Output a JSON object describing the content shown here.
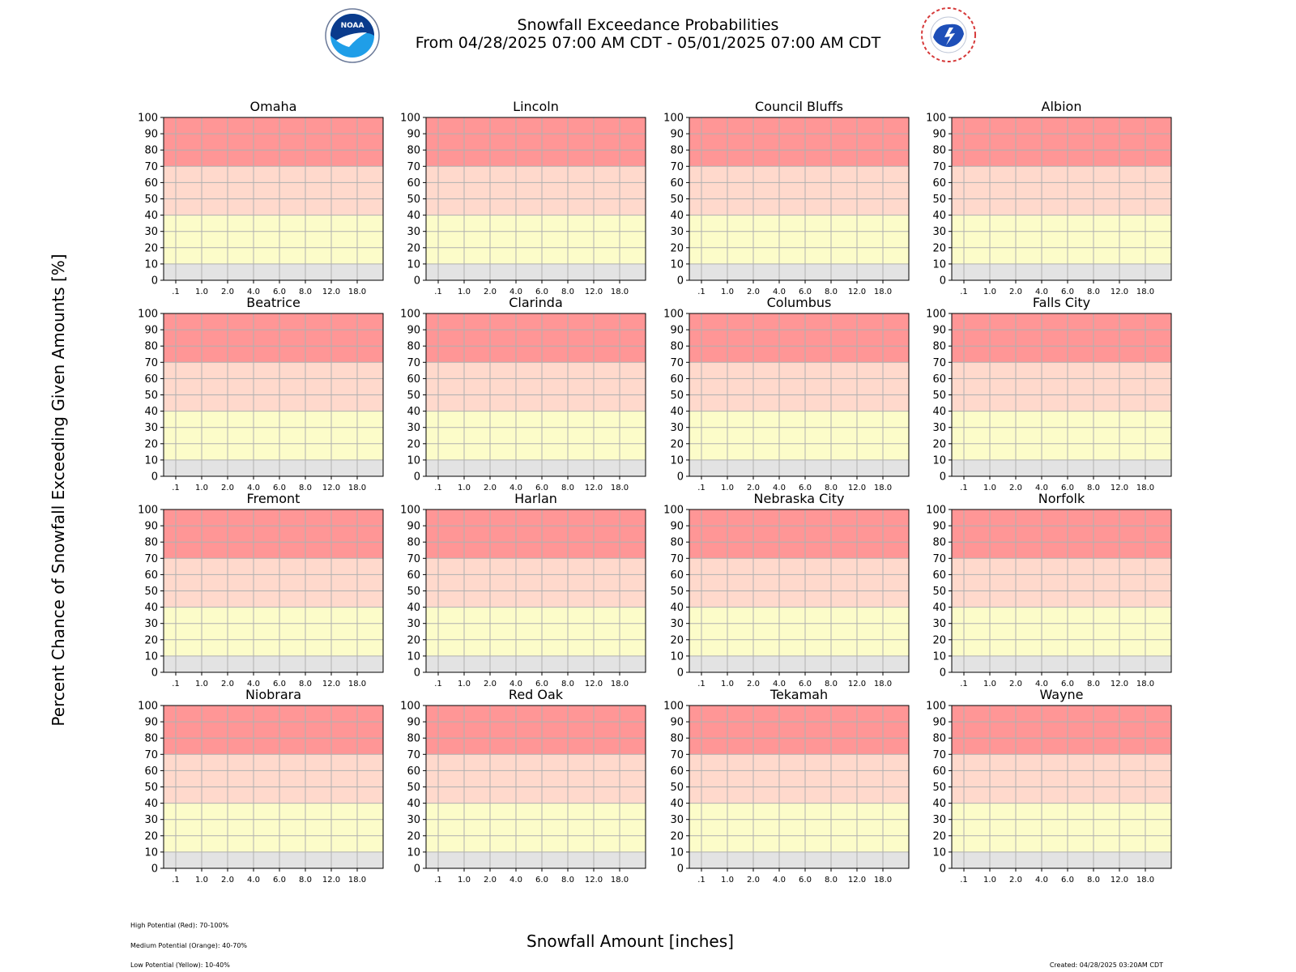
{
  "header": {
    "title_line1": "Snowfall Exceedance Probabilities",
    "title_line2": "From 04/28/2025 07:00 AM CDT - 05/01/2025 07:00 AM CDT"
  },
  "logos": {
    "left": "noaa-logo",
    "right": "nws-logo"
  },
  "colors": {
    "high": "#ff9696",
    "medium": "#ffd9cc",
    "low": "#fcfcc9",
    "minimal": "#e3e3e3",
    "grid": "#b0b0b0"
  },
  "footer": {
    "legend_high": "High Potential (Red): 70-100%",
    "legend_medium": "Medium Potential (Orange): 40-70%",
    "legend_low": "Low Potential (Yellow): 10-40%",
    "created": "Created: 04/28/2025 03:20AM CDT"
  },
  "chart_data": {
    "type": "bar",
    "xlabel": "Snowfall Amount [inches]",
    "ylabel": "Percent Chance of Snowfall Exceeding Given Amounts [%]",
    "categories": [
      ".1",
      "1.0",
      "2.0",
      "4.0",
      "6.0",
      "8.0",
      "12.0",
      "18.0"
    ],
    "ylim": [
      0,
      100
    ],
    "yticks": [
      0,
      10,
      20,
      30,
      40,
      50,
      60,
      70,
      80,
      90,
      100
    ],
    "grid": true,
    "bands": [
      {
        "level": "minimal",
        "from": 0,
        "to": 10
      },
      {
        "level": "low",
        "from": 10,
        "to": 40
      },
      {
        "level": "medium",
        "from": 40,
        "to": 70
      },
      {
        "level": "high",
        "from": 70,
        "to": 100
      }
    ],
    "panels": [
      {
        "title": "Omaha",
        "values": []
      },
      {
        "title": "Lincoln",
        "values": []
      },
      {
        "title": "Council Bluffs",
        "values": []
      },
      {
        "title": "Albion",
        "values": []
      },
      {
        "title": "Beatrice",
        "values": []
      },
      {
        "title": "Clarinda",
        "values": []
      },
      {
        "title": "Columbus",
        "values": []
      },
      {
        "title": "Falls City",
        "values": []
      },
      {
        "title": "Fremont",
        "values": []
      },
      {
        "title": "Harlan",
        "values": []
      },
      {
        "title": "Nebraska City",
        "values": []
      },
      {
        "title": "Norfolk",
        "values": []
      },
      {
        "title": "Niobrara",
        "values": []
      },
      {
        "title": "Red Oak",
        "values": []
      },
      {
        "title": "Tekamah",
        "values": []
      },
      {
        "title": "Wayne",
        "values": []
      }
    ]
  }
}
